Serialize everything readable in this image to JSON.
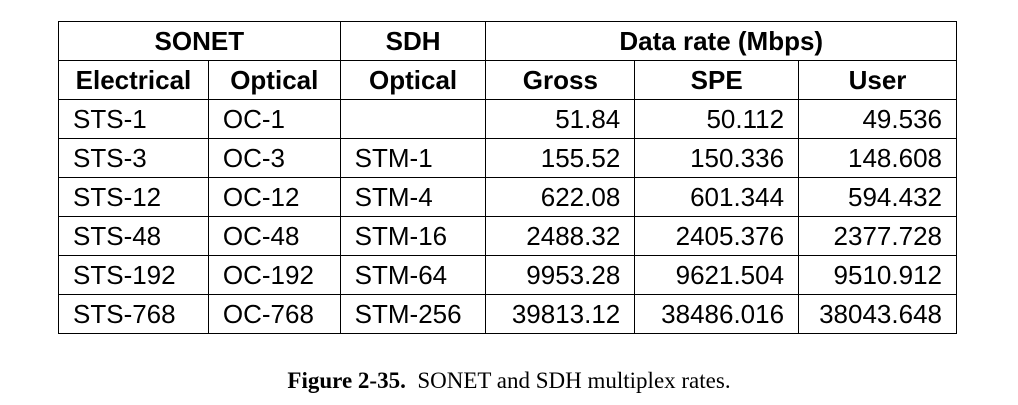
{
  "table": {
    "group_headers": {
      "sonet": "SONET",
      "sdh": "SDH",
      "data_rate": "Data rate (Mbps)"
    },
    "columns": [
      "Electrical",
      "Optical",
      "Optical",
      "Gross",
      "SPE",
      "User"
    ],
    "rows": [
      [
        "STS-1",
        "OC-1",
        "",
        "51.84",
        "50.112",
        "49.536"
      ],
      [
        "STS-3",
        "OC-3",
        "STM-1",
        "155.52",
        "150.336",
        "148.608"
      ],
      [
        "STS-12",
        "OC-12",
        "STM-4",
        "622.08",
        "601.344",
        "594.432"
      ],
      [
        "STS-48",
        "OC-48",
        "STM-16",
        "2488.32",
        "2405.376",
        "2377.728"
      ],
      [
        "STS-192",
        "OC-192",
        "STM-64",
        "9953.28",
        "9621.504",
        "9510.912"
      ],
      [
        "STS-768",
        "OC-768",
        "STM-256",
        "39813.12",
        "38486.016",
        "38043.648"
      ]
    ]
  },
  "caption": {
    "label": "Figure 2-35.",
    "text": "SONET and SDH multiplex rates."
  }
}
